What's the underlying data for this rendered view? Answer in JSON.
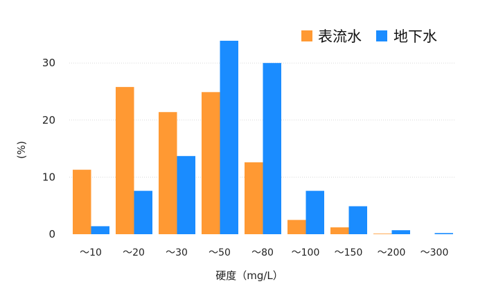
{
  "chart_data": {
    "type": "bar",
    "categories": [
      "～10",
      "～20",
      "～30",
      "～50",
      "～80",
      "～100",
      "～150",
      "～200",
      "～300"
    ],
    "series": [
      {
        "name": "表流水",
        "color": "#ff9933",
        "values": [
          11.3,
          25.8,
          21.4,
          24.9,
          12.6,
          2.5,
          1.2,
          0.1,
          0
        ]
      },
      {
        "name": "地下水",
        "color": "#1a8cff",
        "values": [
          1.4,
          7.6,
          13.7,
          33.9,
          30.0,
          7.6,
          4.9,
          0.7,
          0.2
        ]
      }
    ],
    "xlabel": "硬度（mg/L）",
    "ylabel": "(%)",
    "ylim": [
      0,
      34
    ],
    "yticks": [
      0,
      10,
      20,
      30
    ],
    "grid": true,
    "legend_position": "top-right"
  }
}
